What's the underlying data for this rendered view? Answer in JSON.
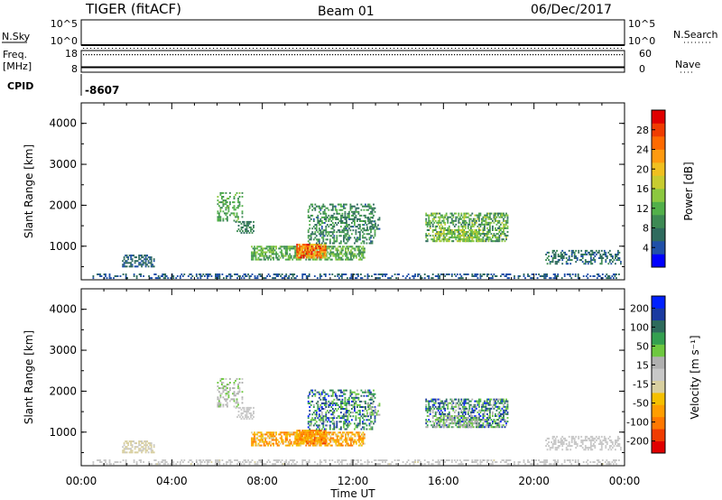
{
  "header": {
    "radar": "TIGER (fitACF)",
    "beam": "Beam 01",
    "date": "06/Dec/2017"
  },
  "status_panel": {
    "nsky_label": "N.Sky",
    "nsearch_label": "N.Search",
    "nsky_ticks": [
      "10^5",
      "10^0"
    ],
    "nsearch_ticks": [
      "10^5",
      "10^0"
    ],
    "freq_label": "Freq.",
    "freq_unit": "[MHz]",
    "freq_ticks": [
      "18",
      "8"
    ],
    "freq_value": 10.3,
    "nave_label": "Nave",
    "nave_ticks": [
      "60",
      "0"
    ],
    "cpid_label": "CPID",
    "cpid_value": "-8607"
  },
  "chart_data": [
    {
      "type": "heatmap",
      "parameter": "power",
      "ylabel": "Slant Range [km]",
      "colorbar_label": "Power [dB]",
      "colorbar_ticks": [
        "28",
        "24",
        "20",
        "16",
        "12",
        "8",
        "4"
      ],
      "colorbar_range": [
        0,
        32
      ],
      "ylim": [
        180,
        4500
      ],
      "yticks": [
        "1000",
        "2000",
        "3000",
        "4000"
      ],
      "xlim": [
        0,
        24
      ]
    },
    {
      "type": "heatmap",
      "parameter": "velocity",
      "ylabel": "Slant Range [km]",
      "colorbar_label": "Velocity [m s⁻¹]",
      "colorbar_ticks": [
        "200",
        "100",
        "50",
        "15",
        "-15",
        "-50",
        "-100",
        "-200"
      ],
      "colorbar_range": [
        -250,
        250
      ],
      "ylim": [
        180,
        4500
      ],
      "yticks": [
        "1000",
        "2000",
        "3000",
        "4000"
      ],
      "xlim": [
        0,
        24
      ]
    }
  ],
  "x_axis": {
    "label": "Time UT",
    "ticks": [
      "00:00",
      "04:00",
      "08:00",
      "12:00",
      "16:00",
      "20:00",
      "00:00"
    ]
  },
  "echo_regions": [
    {
      "t": [
        0.5,
        23.8
      ],
      "r": [
        200,
        320
      ],
      "p": [
        3,
        7
      ],
      "v": [
        -20,
        20
      ],
      "d": 0.35
    },
    {
      "t": [
        1.8,
        3.2
      ],
      "r": [
        480,
        760
      ],
      "p": [
        4,
        8
      ],
      "v": [
        -40,
        -10
      ],
      "d": 0.55
    },
    {
      "t": [
        6.0,
        7.1
      ],
      "r": [
        1600,
        2300
      ],
      "p": [
        8,
        14
      ],
      "v": [
        -10,
        90
      ],
      "d": 0.35
    },
    {
      "t": [
        6.8,
        7.6
      ],
      "r": [
        1300,
        1600
      ],
      "p": [
        6,
        9
      ],
      "v": [
        -5,
        10
      ],
      "d": 0.55
    },
    {
      "t": [
        7.5,
        12.5
      ],
      "r": [
        650,
        1000
      ],
      "p": [
        8,
        16
      ],
      "v": [
        -160,
        -40
      ],
      "d": 0.65
    },
    {
      "t": [
        9.5,
        10.8
      ],
      "r": [
        700,
        1050
      ],
      "p": [
        18,
        30
      ],
      "v": [
        -180,
        -60
      ],
      "d": 0.8
    },
    {
      "t": [
        10.0,
        13.0
      ],
      "r": [
        1050,
        2000
      ],
      "p": [
        5,
        13
      ],
      "v": [
        40,
        230
      ],
      "d": 0.4
    },
    {
      "t": [
        12.6,
        13.2
      ],
      "r": [
        1400,
        1700
      ],
      "p": [
        5,
        9
      ],
      "v": [
        20,
        80
      ],
      "d": 0.4
    },
    {
      "t": [
        15.2,
        18.8
      ],
      "r": [
        1100,
        1800
      ],
      "p": [
        6,
        17
      ],
      "v": [
        20,
        230
      ],
      "d": 0.55
    },
    {
      "t": [
        15.5,
        17.5
      ],
      "r": [
        1100,
        1400
      ],
      "p": [
        12,
        18
      ],
      "v": [
        25,
        80
      ],
      "d": 0.5
    },
    {
      "t": [
        20.5,
        23.8
      ],
      "r": [
        550,
        900
      ],
      "p": [
        4,
        9
      ],
      "v": [
        -15,
        15
      ],
      "d": 0.45
    }
  ],
  "colors": {
    "power": [
      "#0000ff",
      "#2050a8",
      "#2f6b5e",
      "#3d8a54",
      "#52b04a",
      "#8cc840",
      "#c8cc30",
      "#f0c020",
      "#ff9a10",
      "#ff6a00",
      "#f03c00",
      "#e00000"
    ],
    "velocity": [
      "#e00000",
      "#f03c00",
      "#ff7800",
      "#ff9e00",
      "#f5c000",
      "#d8cfa0",
      "#c8c8c8",
      "#b0b0b0",
      "#6ec840",
      "#34a050",
      "#2e6b5c",
      "#1a3aa0",
      "#0020ff"
    ]
  }
}
